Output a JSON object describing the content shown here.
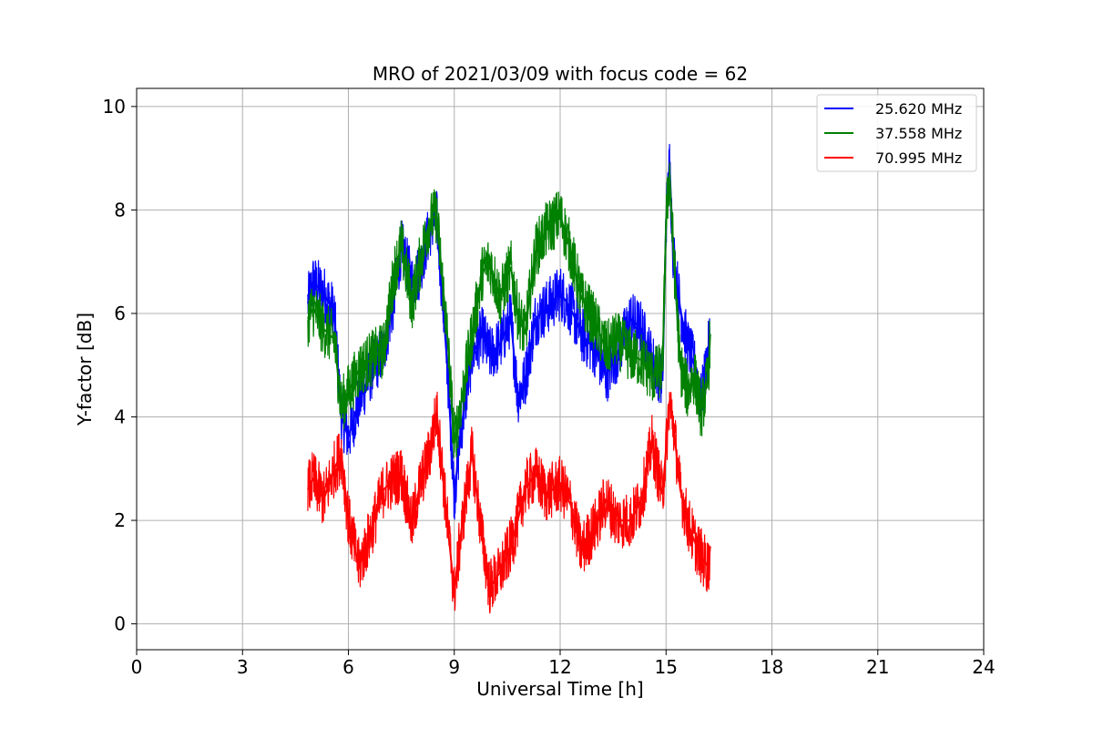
{
  "chart_data": {
    "type": "line",
    "title": "MRO of 2021/03/09 with focus code = 62",
    "xlabel": "Universal Time [h]",
    "ylabel": "Y-factor [dB]",
    "xlim": [
      0,
      24
    ],
    "ylim": [
      -0.5,
      10.35
    ],
    "xticks": [
      0,
      3,
      6,
      9,
      12,
      15,
      18,
      21,
      24
    ],
    "yticks": [
      0,
      2,
      4,
      6,
      8,
      10
    ],
    "grid": true,
    "legend_position": "top-right",
    "series": [
      {
        "name": "25.620 MHz",
        "color": "#0000ff",
        "x": [
          4.85,
          5.0,
          5.3,
          5.6,
          5.8,
          6.0,
          6.3,
          6.6,
          7.0,
          7.3,
          7.5,
          7.8,
          8.0,
          8.3,
          8.5,
          8.8,
          9.0,
          9.2,
          9.5,
          9.8,
          10.0,
          10.3,
          10.6,
          10.8,
          11.0,
          11.3,
          11.6,
          12.0,
          12.3,
          12.6,
          13.0,
          13.3,
          13.6,
          14.0,
          14.3,
          14.6,
          14.9,
          15.0,
          15.1,
          15.2,
          15.4,
          15.6,
          15.8,
          16.0,
          16.2,
          16.25
        ],
        "y": [
          6.2,
          6.6,
          6.4,
          6.0,
          4.0,
          3.6,
          4.3,
          4.8,
          5.3,
          6.3,
          7.3,
          6.6,
          6.8,
          7.6,
          7.9,
          5.0,
          2.5,
          3.8,
          5.2,
          5.6,
          5.2,
          5.4,
          5.9,
          4.4,
          4.7,
          5.9,
          6.1,
          6.4,
          6.1,
          5.6,
          5.3,
          4.8,
          5.2,
          5.9,
          5.7,
          5.1,
          4.7,
          7.8,
          8.9,
          7.2,
          6.1,
          5.4,
          5.0,
          4.3,
          5.3,
          5.6
        ]
      },
      {
        "name": "37.558 MHz",
        "color": "#008000",
        "x": [
          4.85,
          5.0,
          5.3,
          5.6,
          5.8,
          6.0,
          6.3,
          6.6,
          7.0,
          7.3,
          7.5,
          7.8,
          8.0,
          8.3,
          8.5,
          8.8,
          9.0,
          9.2,
          9.5,
          9.8,
          10.0,
          10.3,
          10.6,
          10.8,
          11.0,
          11.3,
          11.6,
          12.0,
          12.3,
          12.6,
          13.0,
          13.3,
          13.6,
          14.0,
          14.3,
          14.6,
          14.9,
          15.0,
          15.1,
          15.2,
          15.4,
          15.6,
          15.8,
          16.0,
          16.2,
          16.25
        ],
        "y": [
          5.9,
          6.1,
          5.7,
          5.5,
          4.2,
          4.5,
          4.9,
          5.1,
          5.3,
          6.8,
          7.3,
          6.2,
          6.9,
          7.8,
          7.9,
          5.6,
          3.5,
          4.3,
          5.6,
          6.8,
          7.0,
          6.3,
          6.9,
          6.0,
          5.6,
          7.2,
          7.6,
          7.9,
          7.2,
          6.3,
          5.8,
          5.3,
          5.5,
          5.2,
          5.1,
          4.8,
          4.9,
          7.8,
          8.7,
          7.3,
          5.0,
          4.5,
          4.8,
          4.1,
          4.8,
          5.6
        ]
      },
      {
        "name": "70.995 MHz",
        "color": "#ff0000",
        "x": [
          4.85,
          5.0,
          5.3,
          5.6,
          5.8,
          6.0,
          6.3,
          6.6,
          7.0,
          7.3,
          7.5,
          7.8,
          8.0,
          8.3,
          8.5,
          8.8,
          9.0,
          9.2,
          9.5,
          9.8,
          10.0,
          10.3,
          10.6,
          10.8,
          11.0,
          11.3,
          11.6,
          12.0,
          12.3,
          12.6,
          13.0,
          13.3,
          13.6,
          14.0,
          14.3,
          14.6,
          14.9,
          15.0,
          15.1,
          15.2,
          15.4,
          15.6,
          15.8,
          16.0,
          16.2,
          16.25
        ],
        "y": [
          2.6,
          2.8,
          2.4,
          3.0,
          3.3,
          2.0,
          1.1,
          1.7,
          2.6,
          2.8,
          2.9,
          1.9,
          2.6,
          3.3,
          4.1,
          2.0,
          0.6,
          1.8,
          3.3,
          1.6,
          0.7,
          1.0,
          1.5,
          2.0,
          2.6,
          2.9,
          2.5,
          2.7,
          2.3,
          1.4,
          1.9,
          2.4,
          2.0,
          2.0,
          2.4,
          3.5,
          2.5,
          3.4,
          4.3,
          3.9,
          2.6,
          2.0,
          1.6,
          1.3,
          1.1,
          1.5
        ]
      }
    ]
  }
}
